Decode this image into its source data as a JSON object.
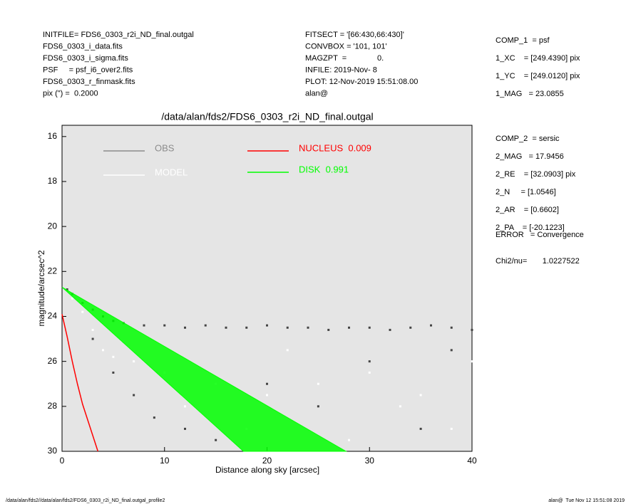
{
  "header": {
    "left": [
      "INITFILE= FDS6_0303_r2i_ND_final.outgal",
      "FDS6_0303_i_data.fits",
      "FDS6_0303_i_sigma.fits",
      "PSF     = psf_i6_over2.fits",
      "FDS6_0303_r_finmask.fits",
      "pix (\") =  0.2000"
    ],
    "middle": [
      "FITSECT = '[66:430,66:430]'",
      "CONVBOX = '101, 101'",
      "MAGZPT  =              0.",
      "INFILE: 2019-Nov- 8",
      "PLOT: 12-Nov-2019 15:51:08.00",
      "alan@"
    ],
    "right_top": [
      "COMP_1  = psf",
      "1_XC    = [249.4390] pix",
      "1_YC    = [249.0120] pix",
      "1_MAG   = 23.0855"
    ],
    "right_mid": [
      "COMP_2  = sersic",
      "2_MAG   = 17.9456",
      "2_RE    = [32.0903] pix",
      "2_N     = [1.0546]",
      "2_AR    = [0.6602]",
      "2_PA    = [-20.1223]"
    ],
    "error": "ERROR   = Convergence",
    "chi": "Chi2/nu=       1.0227522"
  },
  "footer": {
    "left": "/data/alan/fds2//data/alan/fds2/FDS6_0303_r2i_ND_final.outgal_profile2",
    "right": "alan@  Tue Nov 12 15:51:08 2019"
  },
  "chart_data": {
    "type": "scatter",
    "title": "/data/alan/fds2/FDS6_0303_r2i_ND_final.outgal",
    "x_label": "Distance along sky [arcsec]",
    "y_label": "magnitude/arcsec^2",
    "xlim": [
      0,
      40
    ],
    "ylim": [
      30,
      15.5
    ],
    "xticks": [
      0,
      10,
      20,
      30,
      40
    ],
    "yticks": [
      16,
      18,
      20,
      22,
      24,
      26,
      28,
      30
    ],
    "background": "#e5e5e5",
    "series": [
      {
        "name": "OBS",
        "kind": "points",
        "color": "#444444",
        "legend_color": "#8c8c8c",
        "x": [
          0.5,
          1,
          2,
          3,
          4,
          5,
          6,
          8,
          10,
          12,
          14,
          16,
          18,
          20,
          22,
          24,
          26,
          28,
          30,
          32,
          34,
          36,
          38,
          40,
          3,
          5,
          7,
          9,
          12,
          15,
          20,
          25,
          30,
          35,
          38
        ],
        "values": [
          22.8,
          23.0,
          23.4,
          23.7,
          24.0,
          24.2,
          24.3,
          24.4,
          24.4,
          24.5,
          24.4,
          24.5,
          24.5,
          24.4,
          24.5,
          24.5,
          24.6,
          24.5,
          24.5,
          24.6,
          24.5,
          24.4,
          24.5,
          24.6,
          25.0,
          26.5,
          27.5,
          28.5,
          29.0,
          29.5,
          27.0,
          28.0,
          26.0,
          29.0,
          25.5
        ]
      },
      {
        "name": "MODEL",
        "kind": "points",
        "color": "#ffffff",
        "legend_color": "#ffffff",
        "x": [
          1,
          2,
          3,
          4,
          5,
          7,
          10,
          15,
          20,
          25,
          30,
          35,
          40,
          12,
          18,
          22,
          28,
          33,
          38
        ],
        "values": [
          23.2,
          23.8,
          24.6,
          25.5,
          25.8,
          26.0,
          26.5,
          27.0,
          27.5,
          27.0,
          26.5,
          27.5,
          26.0,
          28.0,
          29.0,
          25.5,
          29.5,
          28.0,
          29.0
        ]
      },
      {
        "name": "NUCLEUS  0.009",
        "kind": "line",
        "color": "#ff0000",
        "legend_color": "#ff0000",
        "x": [
          0,
          0.5,
          1,
          1.5,
          2,
          2.5,
          3,
          3.5
        ],
        "values": [
          23.9,
          24.9,
          26.0,
          27.0,
          27.9,
          28.6,
          29.3,
          30.0
        ]
      },
      {
        "name": "DISK  0.991",
        "kind": "band",
        "color": "#00ff00",
        "legend_color": "#00ff00",
        "x": [
          0,
          27.7,
          17.7
        ],
        "values": [
          22.7,
          30,
          30
        ]
      }
    ]
  }
}
